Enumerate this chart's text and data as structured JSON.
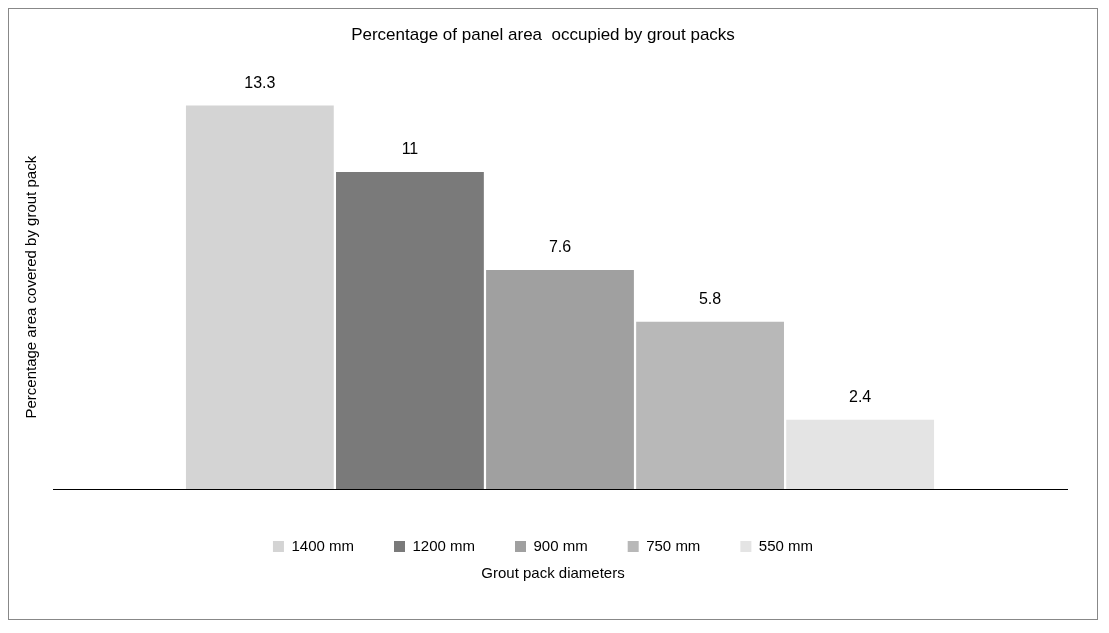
{
  "chart_data": {
    "type": "bar",
    "title": "Percentage of panel area  occupied by grout packs",
    "xlabel": "Grout pack diameters",
    "ylabel": "Percentage area covered by grout pack",
    "categories": [
      null
    ],
    "series": [
      {
        "name": "1400 mm",
        "color": "#d4d4d4",
        "values": [
          13.3
        ]
      },
      {
        "name": "1200 mm",
        "color": "#7a7a7a",
        "values": [
          11
        ]
      },
      {
        "name": "900 mm",
        "color": "#a0a0a0",
        "values": [
          7.6
        ]
      },
      {
        "name": "750 mm",
        "color": "#b8b8b8",
        "values": [
          5.8
        ]
      },
      {
        "name": "550 mm",
        "color": "#e4e4e4",
        "values": [
          2.4
        ]
      }
    ],
    "data_labels": true,
    "legend": "bottom",
    "grid": false,
    "tick_labels": false
  }
}
